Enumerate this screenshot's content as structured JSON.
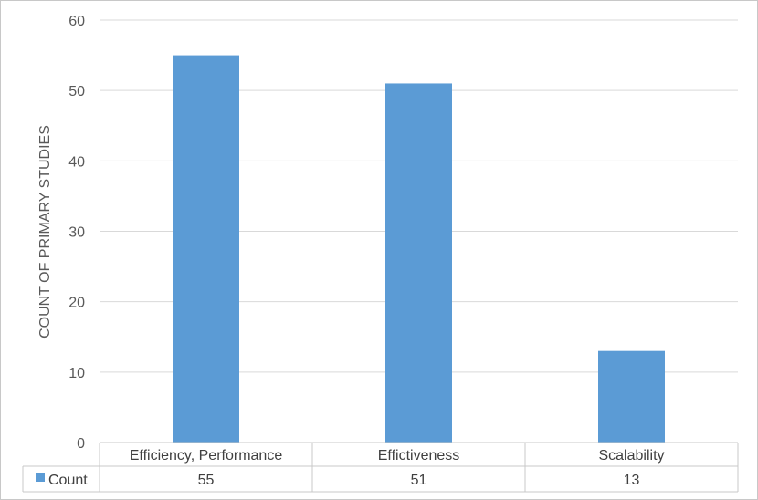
{
  "colors": {
    "bar": "#5b9bd5",
    "gridline": "#d9d9d9",
    "table_border": "#c8c8c8",
    "text": "#595959"
  },
  "chart_data": {
    "type": "bar",
    "title": "",
    "xlabel": "",
    "ylabel": "COUNT OF PRIMARY STUDIES",
    "categories": [
      "Efficiency, Performance",
      "Effictiveness",
      "Scalability"
    ],
    "series": [
      {
        "name": "Count",
        "values": [
          55,
          51,
          13
        ]
      }
    ],
    "ylim": [
      0,
      60
    ],
    "yticks": [
      0,
      10,
      20,
      30,
      40,
      50,
      60
    ],
    "grid": true,
    "legend": "data-table"
  }
}
